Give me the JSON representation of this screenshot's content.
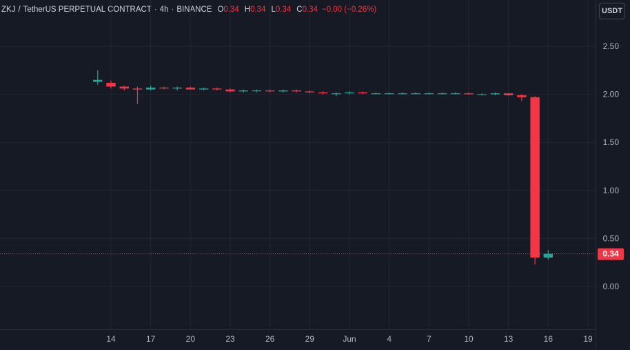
{
  "legend": {
    "symbol": "ZKJ",
    "separator": "/",
    "pair": "TetherUS PERPETUAL CONTRACT",
    "interval": "4h",
    "exchange": "BINANCE",
    "open_label": "O",
    "open": "0.34",
    "high_label": "H",
    "high": "0.34",
    "low_label": "L",
    "low": "0.34",
    "close_label": "C",
    "close": "0.34",
    "change": "−0.00 (−0.26%)"
  },
  "currency_button": "USDT",
  "last_price_tag": "0.34",
  "colors": {
    "background": "#161a25",
    "grid": "#232733",
    "up": "#26a69a",
    "down": "#f23645",
    "text": "#b2b5be"
  },
  "chart_data": {
    "type": "candlestick",
    "y_ticks": [
      "2.50",
      "2.00",
      "1.50",
      "1.00",
      "0.50",
      "0.00"
    ],
    "y_tick_values": [
      2.5,
      2.0,
      1.5,
      1.0,
      0.5,
      0.0
    ],
    "x_ticks": [
      "14",
      "17",
      "20",
      "23",
      "26",
      "29",
      "Jun",
      "4",
      "7",
      "10",
      "13",
      "16",
      "19"
    ],
    "x_tick_dates": [
      "2025-05-14",
      "2025-05-17",
      "2025-05-20",
      "2025-05-23",
      "2025-05-26",
      "2025-05-29",
      "2025-06-01",
      "2025-06-04",
      "2025-06-07",
      "2025-06-10",
      "2025-06-13",
      "2025-06-16",
      "2025-06-19"
    ],
    "last_price": 0.34,
    "grid": true,
    "series": [
      {
        "date": "2025-05-13",
        "open": 2.13,
        "high": 2.25,
        "low": 2.1,
        "close": 2.15
      },
      {
        "date": "2025-05-14",
        "open": 2.12,
        "high": 2.14,
        "low": 2.06,
        "close": 2.08
      },
      {
        "date": "2025-05-15",
        "open": 2.08,
        "high": 2.09,
        "low": 2.04,
        "close": 2.06
      },
      {
        "date": "2025-05-16",
        "open": 2.06,
        "high": 2.08,
        "low": 1.9,
        "close": 2.05
      },
      {
        "date": "2025-05-17",
        "open": 2.05,
        "high": 2.09,
        "low": 2.04,
        "close": 2.07
      },
      {
        "date": "2025-05-18",
        "open": 2.07,
        "high": 2.08,
        "low": 2.05,
        "close": 2.06
      },
      {
        "date": "2025-05-19",
        "open": 2.06,
        "high": 2.08,
        "low": 2.04,
        "close": 2.07
      },
      {
        "date": "2025-05-20",
        "open": 2.07,
        "high": 2.08,
        "low": 2.05,
        "close": 2.05
      },
      {
        "date": "2025-05-21",
        "open": 2.05,
        "high": 2.07,
        "low": 2.04,
        "close": 2.06
      },
      {
        "date": "2025-05-22",
        "open": 2.06,
        "high": 2.07,
        "low": 2.04,
        "close": 2.05
      },
      {
        "date": "2025-05-23",
        "open": 2.05,
        "high": 2.06,
        "low": 2.02,
        "close": 2.03
      },
      {
        "date": "2025-05-24",
        "open": 2.03,
        "high": 2.05,
        "low": 2.02,
        "close": 2.04
      },
      {
        "date": "2025-05-25",
        "open": 2.04,
        "high": 2.05,
        "low": 2.02,
        "close": 2.04
      },
      {
        "date": "2025-05-26",
        "open": 2.04,
        "high": 2.05,
        "low": 2.02,
        "close": 2.03
      },
      {
        "date": "2025-05-27",
        "open": 2.03,
        "high": 2.05,
        "low": 2.02,
        "close": 2.04
      },
      {
        "date": "2025-05-28",
        "open": 2.04,
        "high": 2.05,
        "low": 2.02,
        "close": 2.03
      },
      {
        "date": "2025-05-29",
        "open": 2.03,
        "high": 2.04,
        "low": 2.01,
        "close": 2.02
      },
      {
        "date": "2025-05-30",
        "open": 2.02,
        "high": 2.03,
        "low": 2.0,
        "close": 2.01
      },
      {
        "date": "2025-05-31",
        "open": 2.01,
        "high": 2.02,
        "low": 1.98,
        "close": 2.01
      },
      {
        "date": "2025-06-01",
        "open": 2.01,
        "high": 2.03,
        "low": 2.0,
        "close": 2.02
      },
      {
        "date": "2025-06-02",
        "open": 2.02,
        "high": 2.03,
        "low": 2.0,
        "close": 2.01
      },
      {
        "date": "2025-06-03",
        "open": 2.01,
        "high": 2.02,
        "low": 2.0,
        "close": 2.01
      },
      {
        "date": "2025-06-04",
        "open": 2.01,
        "high": 2.02,
        "low": 2.0,
        "close": 2.01
      },
      {
        "date": "2025-06-05",
        "open": 2.01,
        "high": 2.02,
        "low": 2.0,
        "close": 2.01
      },
      {
        "date": "2025-06-06",
        "open": 2.01,
        "high": 2.02,
        "low": 2.0,
        "close": 2.01
      },
      {
        "date": "2025-06-07",
        "open": 2.01,
        "high": 2.02,
        "low": 2.0,
        "close": 2.01
      },
      {
        "date": "2025-06-08",
        "open": 2.01,
        "high": 2.02,
        "low": 2.0,
        "close": 2.01
      },
      {
        "date": "2025-06-09",
        "open": 2.01,
        "high": 2.02,
        "low": 2.0,
        "close": 2.01
      },
      {
        "date": "2025-06-10",
        "open": 2.01,
        "high": 2.02,
        "low": 2.0,
        "close": 2.0
      },
      {
        "date": "2025-06-11",
        "open": 2.0,
        "high": 2.01,
        "low": 1.99,
        "close": 2.0
      },
      {
        "date": "2025-06-12",
        "open": 2.0,
        "high": 2.02,
        "low": 1.99,
        "close": 2.01
      },
      {
        "date": "2025-06-13",
        "open": 2.01,
        "high": 2.01,
        "low": 1.98,
        "close": 1.99
      },
      {
        "date": "2025-06-14",
        "open": 1.99,
        "high": 2.0,
        "low": 1.93,
        "close": 1.97
      },
      {
        "date": "2025-06-15",
        "open": 1.97,
        "high": 1.98,
        "low": 0.23,
        "close": 0.3
      },
      {
        "date": "2025-06-16",
        "open": 0.3,
        "high": 0.38,
        "low": 0.28,
        "close": 0.34
      }
    ]
  }
}
